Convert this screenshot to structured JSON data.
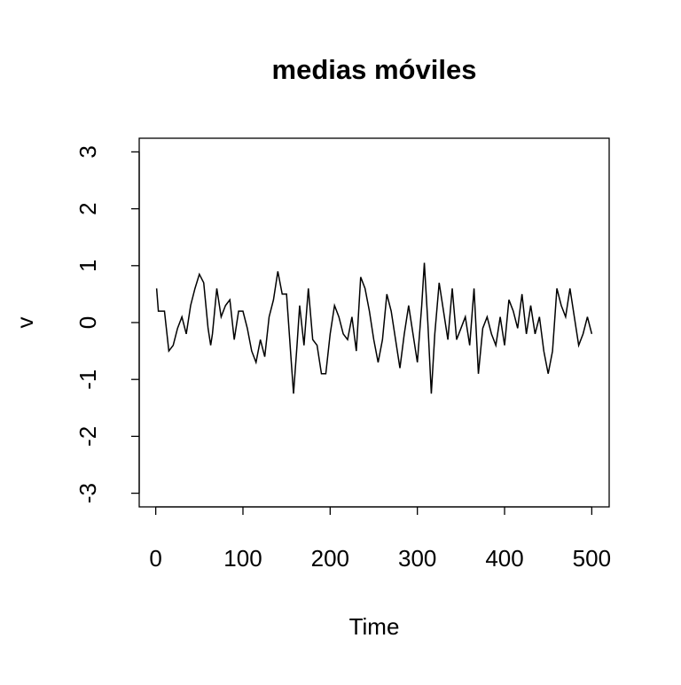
{
  "chart_data": {
    "type": "line",
    "title": "medias móviles",
    "x_label": "Time",
    "y_label": "v",
    "x": [
      1,
      3,
      10,
      15,
      20,
      25,
      30,
      35,
      40,
      45,
      50,
      55,
      60,
      63,
      65,
      70,
      75,
      80,
      85,
      90,
      95,
      100,
      105,
      110,
      115,
      120,
      125,
      130,
      135,
      140,
      145,
      150,
      155,
      158,
      162,
      165,
      170,
      175,
      180,
      185,
      190,
      195,
      200,
      205,
      210,
      215,
      220,
      225,
      230,
      235,
      240,
      245,
      250,
      255,
      260,
      265,
      270,
      275,
      280,
      285,
      290,
      295,
      300,
      305,
      308,
      312,
      316,
      320,
      325,
      330,
      335,
      340,
      345,
      350,
      355,
      360,
      365,
      370,
      375,
      380,
      385,
      390,
      395,
      400,
      405,
      410,
      415,
      420,
      425,
      430,
      435,
      440,
      445,
      450,
      455,
      460,
      465,
      470,
      475,
      480,
      485,
      490,
      495,
      500
    ],
    "series": [
      {
        "name": "v",
        "color": "#000000",
        "values": [
          0.6,
          0.2,
          0.2,
          -0.5,
          -0.4,
          -0.1,
          0.1,
          -0.2,
          0.3,
          0.6,
          0.85,
          0.7,
          -0.1,
          -0.4,
          -0.2,
          0.6,
          0.1,
          0.3,
          0.4,
          -0.3,
          0.2,
          0.2,
          -0.1,
          -0.5,
          -0.7,
          -0.3,
          -0.6,
          0.1,
          0.4,
          0.9,
          0.5,
          0.5,
          -0.6,
          -1.25,
          -0.4,
          0.3,
          -0.4,
          0.6,
          -0.3,
          -0.4,
          -0.9,
          -0.9,
          -0.2,
          0.3,
          0.1,
          -0.2,
          -0.3,
          0.1,
          -0.5,
          0.8,
          0.6,
          0.2,
          -0.3,
          -0.7,
          -0.3,
          0.5,
          0.2,
          -0.3,
          -0.8,
          -0.2,
          0.3,
          -0.2,
          -0.7,
          0.3,
          1.05,
          0.0,
          -1.25,
          -0.2,
          0.7,
          0.2,
          -0.3,
          0.6,
          -0.3,
          -0.1,
          0.1,
          -0.4,
          0.6,
          -0.9,
          -0.1,
          0.1,
          -0.2,
          -0.4,
          0.1,
          -0.4,
          0.4,
          0.2,
          -0.1,
          0.5,
          -0.2,
          0.3,
          -0.2,
          0.1,
          -0.5,
          -0.9,
          -0.5,
          0.6,
          0.3,
          0.1,
          0.6,
          0.1,
          -0.4,
          -0.2,
          0.1,
          -0.2
        ]
      }
    ],
    "xlim": [
      -18.96,
      519.96
    ],
    "ylim": [
      -3.24,
      3.24
    ],
    "xticks": [
      0,
      100,
      200,
      300,
      400,
      500
    ],
    "yticks": [
      -3,
      -2,
      -1,
      0,
      1,
      2,
      3
    ]
  }
}
